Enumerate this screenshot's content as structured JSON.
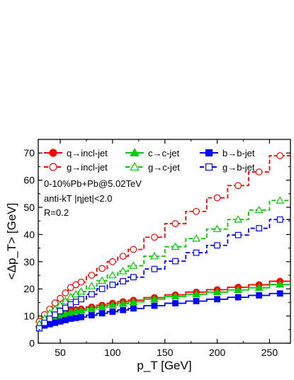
{
  "chart_data": {
    "type": "line",
    "style": "step",
    "xlabel": "p_T [GeV]",
    "ylabel": "<Δp_T> [GeV]",
    "xlim": [
      29,
      270
    ],
    "ylim": [
      0,
      75
    ],
    "xticks": [
      50,
      100,
      150,
      200,
      250
    ],
    "yticks": [
      0,
      10,
      20,
      30,
      40,
      50,
      60,
      70
    ],
    "xtick_labels": [
      "50",
      "100",
      "150",
      "200",
      "250"
    ],
    "ytick_labels": [
      "0",
      "10",
      "20",
      "30",
      "40",
      "50",
      "60",
      "70"
    ],
    "legend_placement": "top",
    "annotations": [
      "0-10%Pb+Pb@5.02TeV",
      "anti-kT |ηjet|<2.0",
      "R=0.2"
    ],
    "x": [
      30,
      35,
      40,
      45,
      50,
      55,
      60,
      65,
      70,
      80,
      90,
      100,
      110,
      120,
      140,
      160,
      180,
      200,
      220,
      240,
      260
    ],
    "series": [
      {
        "name": "q→incl-jet",
        "color": "#ff0000",
        "marker": "circle",
        "filled": true,
        "dashed": false,
        "values": [
          8.0,
          9.0,
          9.8,
          10.5,
          11.0,
          11.5,
          12.0,
          12.3,
          12.6,
          13.3,
          14.0,
          14.7,
          15.3,
          15.8,
          16.8,
          17.8,
          18.8,
          19.7,
          20.6,
          21.5,
          22.8
        ]
      },
      {
        "name": "g→incl-jet",
        "color": "#ff0000",
        "marker": "circle",
        "filled": false,
        "dashed": true,
        "values": [
          8.0,
          10.5,
          12.5,
          14.8,
          16.5,
          18.5,
          20.5,
          21.5,
          22.5,
          25.0,
          27.5,
          30.0,
          32.0,
          34.5,
          39.0,
          44.0,
          48.5,
          53.5,
          58.0,
          63.0,
          69.0
        ]
      },
      {
        "name": "c→c-jet",
        "color": "#00cc00",
        "marker": "triangle",
        "filled": true,
        "dashed": false,
        "values": [
          7.0,
          8.0,
          9.0,
          9.7,
          10.2,
          10.8,
          11.3,
          11.7,
          12.0,
          12.6,
          13.3,
          14.0,
          14.6,
          15.2,
          16.2,
          17.2,
          18.0,
          18.8,
          19.6,
          20.4,
          21.6
        ]
      },
      {
        "name": "g→c-jet",
        "color": "#00cc00",
        "marker": "triangle",
        "filled": false,
        "dashed": true,
        "values": [
          7.0,
          9.0,
          11.0,
          12.5,
          14.0,
          15.5,
          17.0,
          18.0,
          19.0,
          21.0,
          23.0,
          25.0,
          26.5,
          28.5,
          32.0,
          35.5,
          38.5,
          42.0,
          45.5,
          49.0,
          52.5
        ]
      },
      {
        "name": "b→b-jet",
        "color": "#0000ff",
        "marker": "square",
        "filled": true,
        "dashed": false,
        "values": [
          5.5,
          6.5,
          7.0,
          7.5,
          8.0,
          8.5,
          9.0,
          9.3,
          9.6,
          10.3,
          11.0,
          11.6,
          12.2,
          12.8,
          13.8,
          14.7,
          15.5,
          16.2,
          16.9,
          17.6,
          18.3
        ]
      },
      {
        "name": "g→b-jet",
        "color": "#0000ff",
        "marker": "square",
        "filled": false,
        "dashed": true,
        "values": [
          5.5,
          7.5,
          9.0,
          10.5,
          11.8,
          13.0,
          14.3,
          15.2,
          16.2,
          18.0,
          20.0,
          21.5,
          22.8,
          24.3,
          27.3,
          30.2,
          33.3,
          36.0,
          39.8,
          42.3,
          45.5
        ]
      }
    ]
  }
}
